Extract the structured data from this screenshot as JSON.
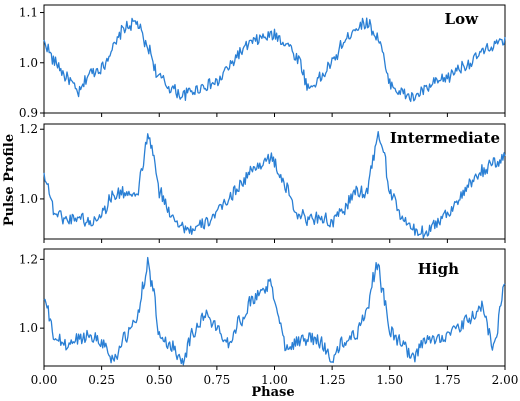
{
  "chart_data": {
    "type": "line",
    "xlabel": "Phase",
    "ylabel": "Pulse Profile",
    "xlim": [
      0.0,
      2.0
    ],
    "x_ticks": [
      "0.00",
      "0.25",
      "0.50",
      "0.75",
      "1.00",
      "1.25",
      "1.50",
      "1.75",
      "2.00"
    ],
    "series_color": "#2a7fd4",
    "panels": [
      {
        "label": "Low",
        "ylim": [
          0.9,
          1.115
        ],
        "y_ticks": [
          "0.9",
          "1.0",
          "1.1"
        ],
        "y_tick_values": [
          0.9,
          1.0,
          1.1
        ],
        "x": [
          0.0,
          0.05,
          0.1,
          0.15,
          0.2,
          0.25,
          0.3,
          0.35,
          0.4,
          0.45,
          0.5,
          0.55,
          0.6,
          0.65,
          0.7,
          0.75,
          0.8,
          0.85,
          0.9,
          0.95,
          1.0,
          1.05,
          1.1,
          1.15,
          1.2,
          1.25,
          1.3,
          1.35,
          1.4,
          1.45,
          1.5,
          1.55,
          1.6,
          1.65,
          1.7,
          1.75,
          1.8,
          1.85,
          1.9,
          1.95,
          2.0
        ],
        "y": [
          1.04,
          1.0,
          0.97,
          0.94,
          0.98,
          0.99,
          1.03,
          1.07,
          1.08,
          1.03,
          0.97,
          0.95,
          0.935,
          0.945,
          0.955,
          0.96,
          0.99,
          1.02,
          1.04,
          1.05,
          1.055,
          1.04,
          1.01,
          0.95,
          0.97,
          1.0,
          1.04,
          1.07,
          1.08,
          1.05,
          0.96,
          0.94,
          0.93,
          0.945,
          0.96,
          0.97,
          0.99,
          1.0,
          1.02,
          1.035,
          1.04
        ]
      },
      {
        "label": "Intermediate",
        "ylim": [
          0.885,
          1.215
        ],
        "y_ticks": [
          "1.0",
          "1.2"
        ],
        "y_tick_values": [
          1.0,
          1.2
        ],
        "x": [
          0.0,
          0.05,
          0.1,
          0.15,
          0.2,
          0.25,
          0.3,
          0.35,
          0.4,
          0.43,
          0.45,
          0.47,
          0.5,
          0.55,
          0.6,
          0.65,
          0.7,
          0.75,
          0.8,
          0.85,
          0.9,
          0.95,
          0.98,
          1.0,
          1.05,
          1.1,
          1.15,
          1.2,
          1.25,
          1.3,
          1.35,
          1.4,
          1.43,
          1.45,
          1.47,
          1.5,
          1.55,
          1.6,
          1.65,
          1.7,
          1.75,
          1.8,
          1.85,
          1.9,
          1.95,
          2.0
        ],
        "y": [
          1.07,
          0.96,
          0.94,
          0.95,
          0.93,
          0.96,
          1.01,
          1.02,
          1.0,
          1.1,
          1.18,
          1.14,
          1.02,
          0.96,
          0.92,
          0.91,
          0.93,
          0.96,
          1.0,
          1.04,
          1.08,
          1.105,
          1.12,
          1.1,
          1.03,
          0.96,
          0.94,
          0.95,
          0.93,
          0.97,
          1.02,
          1.02,
          1.12,
          1.18,
          1.15,
          1.02,
          0.95,
          0.91,
          0.905,
          0.93,
          0.96,
          1.0,
          1.04,
          1.08,
          1.1,
          1.12
        ]
      },
      {
        "label": "High",
        "ylim": [
          0.89,
          1.23
        ],
        "y_ticks": [
          "1.0",
          "1.2"
        ],
        "y_tick_values": [
          1.0,
          1.2
        ],
        "x": [
          0.0,
          0.05,
          0.1,
          0.15,
          0.2,
          0.25,
          0.3,
          0.35,
          0.4,
          0.43,
          0.45,
          0.47,
          0.5,
          0.55,
          0.6,
          0.65,
          0.7,
          0.75,
          0.8,
          0.85,
          0.9,
          0.95,
          0.98,
          1.0,
          1.05,
          1.1,
          1.15,
          1.2,
          1.25,
          1.3,
          1.35,
          1.4,
          1.43,
          1.45,
          1.47,
          1.5,
          1.55,
          1.6,
          1.65,
          1.7,
          1.75,
          1.8,
          1.85,
          1.9,
          1.95,
          2.0
        ],
        "y": [
          1.08,
          0.97,
          0.95,
          0.97,
          0.98,
          0.96,
          0.91,
          0.97,
          1.02,
          1.12,
          1.19,
          1.12,
          0.98,
          0.95,
          0.91,
          0.99,
          1.04,
          1.0,
          0.96,
          1.02,
          1.08,
          1.11,
          1.13,
          1.08,
          0.95,
          0.96,
          0.97,
          0.96,
          0.91,
          0.96,
          0.98,
          1.05,
          1.15,
          1.19,
          1.1,
          0.99,
          0.96,
          0.91,
          0.96,
          0.97,
          0.98,
          1.0,
          1.03,
          1.06,
          0.95,
          1.12
        ]
      }
    ]
  }
}
